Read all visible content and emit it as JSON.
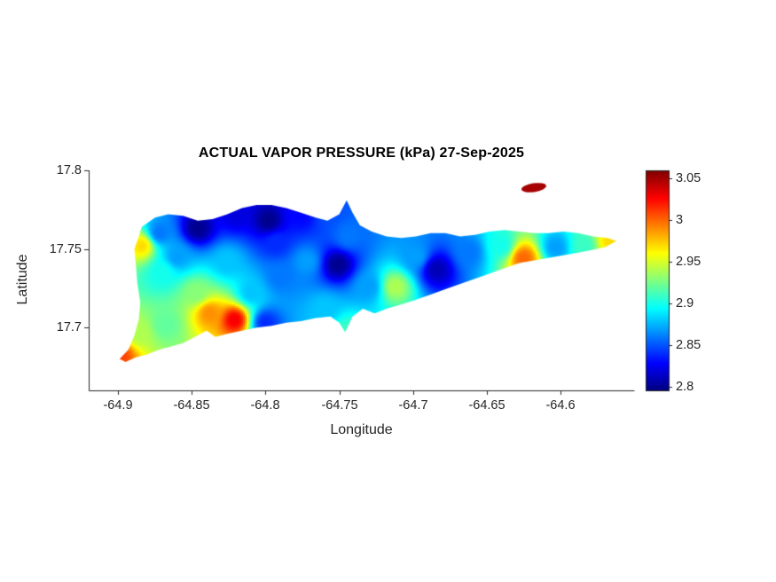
{
  "figure": {
    "background": "#ffffff",
    "axis_color": "#262626"
  },
  "chart_data": {
    "type": "heatmap",
    "title": "ACTUAL VAPOR PRESSURE (kPa) 27-Sep-2025",
    "variable": "ACTUAL VAPOR PRESSURE",
    "units": "kPa",
    "date": "27-Sep-2025",
    "xlabel": "Longitude",
    "ylabel": "Latitude",
    "xlim": [
      -64.92,
      -64.55
    ],
    "ylim": [
      17.66,
      17.8
    ],
    "x_ticks": [
      -64.9,
      -64.85,
      -64.8,
      -64.75,
      -64.7,
      -64.65,
      -64.6
    ],
    "x_tick_labels": [
      "-64.9",
      "-64.85",
      "-64.8",
      "-64.75",
      "-64.7",
      "-64.65",
      "-64.6"
    ],
    "y_ticks": [
      17.7,
      17.75,
      17.8
    ],
    "y_tick_labels": [
      "17.7",
      "17.75",
      "17.8"
    ],
    "grid": false,
    "legend": false,
    "colorbar": {
      "position": "right",
      "colormap": "jet",
      "range": [
        2.796,
        3.06
      ],
      "ticks": [
        2.8,
        2.85,
        2.9,
        2.95,
        3,
        3.05
      ],
      "tick_labels": [
        "2.8",
        "2.85",
        "2.9",
        "2.95",
        "3",
        "3.05"
      ]
    },
    "island_outline": [
      [
        -64.899,
        17.68
      ],
      [
        -64.893,
        17.686
      ],
      [
        -64.889,
        17.695
      ],
      [
        -64.886,
        17.705
      ],
      [
        -64.885,
        17.716
      ],
      [
        -64.887,
        17.728
      ],
      [
        -64.888,
        17.74
      ],
      [
        -64.889,
        17.75
      ],
      [
        -64.886,
        17.758
      ],
      [
        -64.884,
        17.764
      ],
      [
        -64.875,
        17.77
      ],
      [
        -64.866,
        17.772
      ],
      [
        -64.856,
        17.771
      ],
      [
        -64.846,
        17.768
      ],
      [
        -64.836,
        17.769
      ],
      [
        -64.826,
        17.772
      ],
      [
        -64.816,
        17.776
      ],
      [
        -64.806,
        17.778
      ],
      [
        -64.796,
        17.778
      ],
      [
        -64.786,
        17.776
      ],
      [
        -64.776,
        17.773
      ],
      [
        -64.766,
        17.77
      ],
      [
        -64.758,
        17.768
      ],
      [
        -64.75,
        17.772
      ],
      [
        -64.745,
        17.781
      ],
      [
        -64.741,
        17.773
      ],
      [
        -64.736,
        17.765
      ],
      [
        -64.728,
        17.761
      ],
      [
        -64.718,
        17.758
      ],
      [
        -64.708,
        17.757
      ],
      [
        -64.698,
        17.758
      ],
      [
        -64.688,
        17.76
      ],
      [
        -64.678,
        17.76
      ],
      [
        -64.668,
        17.758
      ],
      [
        -64.658,
        17.759
      ],
      [
        -64.648,
        17.761
      ],
      [
        -64.638,
        17.762
      ],
      [
        -64.628,
        17.761
      ],
      [
        -64.618,
        17.76
      ],
      [
        -64.608,
        17.76
      ],
      [
        -64.598,
        17.761
      ],
      [
        -64.588,
        17.76
      ],
      [
        -64.578,
        17.758
      ],
      [
        -64.568,
        17.757
      ],
      [
        -64.562,
        17.755
      ],
      [
        -64.57,
        17.751
      ],
      [
        -64.58,
        17.749
      ],
      [
        -64.592,
        17.747
      ],
      [
        -64.604,
        17.745
      ],
      [
        -64.616,
        17.743
      ],
      [
        -64.628,
        17.741
      ],
      [
        -64.64,
        17.737
      ],
      [
        -64.652,
        17.733
      ],
      [
        -64.664,
        17.729
      ],
      [
        -64.676,
        17.725
      ],
      [
        -64.688,
        17.721
      ],
      [
        -64.7,
        17.717
      ],
      [
        -64.71,
        17.714
      ],
      [
        -64.718,
        17.712
      ],
      [
        -64.726,
        17.709
      ],
      [
        -64.734,
        17.712
      ],
      [
        -64.741,
        17.707
      ],
      [
        -64.746,
        17.697
      ],
      [
        -64.75,
        17.703
      ],
      [
        -64.756,
        17.707
      ],
      [
        -64.766,
        17.706
      ],
      [
        -64.776,
        17.704
      ],
      [
        -64.786,
        17.703
      ],
      [
        -64.796,
        17.701
      ],
      [
        -64.806,
        17.7
      ],
      [
        -64.816,
        17.698
      ],
      [
        -64.826,
        17.696
      ],
      [
        -64.834,
        17.694
      ],
      [
        -64.84,
        17.698
      ],
      [
        -64.848,
        17.694
      ],
      [
        -64.856,
        17.69
      ],
      [
        -64.864,
        17.688
      ],
      [
        -64.872,
        17.686
      ],
      [
        -64.88,
        17.683
      ],
      [
        -64.888,
        17.681
      ],
      [
        -64.895,
        17.678
      ]
    ],
    "islets": [
      {
        "center": [
          -64.618,
          17.789
        ],
        "rx": 0.0085,
        "ry": 0.0028,
        "value": 3.05
      }
    ],
    "points": [
      [
        -64.899,
        17.682,
        3.01
      ],
      [
        -64.886,
        17.697,
        2.94
      ],
      [
        -64.884,
        17.752,
        2.97
      ],
      [
        -64.872,
        17.76,
        2.86
      ],
      [
        -64.87,
        17.735,
        2.9
      ],
      [
        -64.868,
        17.702,
        2.92
      ],
      [
        -64.846,
        17.763,
        2.8
      ],
      [
        -64.82,
        17.772,
        2.82
      ],
      [
        -64.798,
        17.768,
        2.8
      ],
      [
        -64.776,
        17.771,
        2.83
      ],
      [
        -64.757,
        17.774,
        2.85
      ],
      [
        -64.86,
        17.745,
        2.87
      ],
      [
        -64.847,
        17.722,
        2.93
      ],
      [
        -64.838,
        17.709,
        2.99
      ],
      [
        -64.821,
        17.705,
        3.03
      ],
      [
        -64.8,
        17.703,
        2.84
      ],
      [
        -64.81,
        17.722,
        2.88
      ],
      [
        -64.79,
        17.732,
        2.86
      ],
      [
        -64.772,
        17.742,
        2.87
      ],
      [
        -64.751,
        17.74,
        2.8
      ],
      [
        -64.76,
        17.712,
        2.88
      ],
      [
        -64.744,
        17.698,
        2.91
      ],
      [
        -64.73,
        17.726,
        2.87
      ],
      [
        -64.712,
        17.726,
        2.94
      ],
      [
        -64.698,
        17.745,
        2.87
      ],
      [
        -64.684,
        17.737,
        2.81
      ],
      [
        -64.662,
        17.748,
        2.86
      ],
      [
        -64.625,
        17.744,
        3.0
      ],
      [
        -64.64,
        17.752,
        2.9
      ],
      [
        -64.603,
        17.751,
        2.87
      ],
      [
        -64.584,
        17.752,
        2.91
      ],
      [
        -64.566,
        17.755,
        2.97
      ],
      [
        -64.793,
        17.754,
        2.84
      ],
      [
        -64.826,
        17.742,
        2.88
      ],
      [
        -64.744,
        17.758,
        2.86
      ]
    ]
  }
}
